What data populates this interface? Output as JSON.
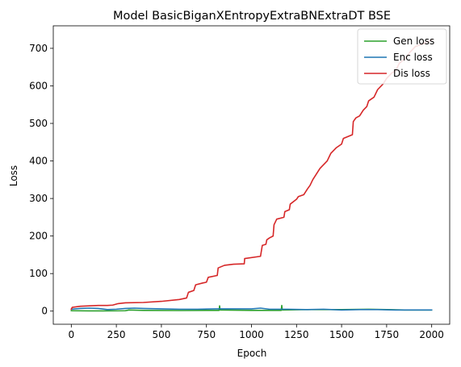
{
  "chart_data": {
    "type": "line",
    "title": "Model BasicBiganXEntropyExtraBNExtraDT BSE",
    "xlabel": "Epoch",
    "ylabel": "Loss",
    "xlim": [
      -100,
      2100
    ],
    "ylim": [
      -35,
      760
    ],
    "xticks": [
      0,
      250,
      500,
      750,
      1000,
      1250,
      1500,
      1750,
      2000
    ],
    "yticks": [
      0,
      100,
      200,
      300,
      400,
      500,
      600,
      700
    ],
    "grid": false,
    "legend_position": "top-right",
    "series": [
      {
        "name": "Gen loss",
        "color": "#2ca02c",
        "points": [
          [
            0,
            1
          ],
          [
            100,
            0.5
          ],
          [
            300,
            1
          ],
          [
            320,
            3
          ],
          [
            400,
            2
          ],
          [
            600,
            1.5
          ],
          [
            820,
            2
          ],
          [
            823,
            14
          ],
          [
            826,
            3
          ],
          [
            1000,
            2
          ],
          [
            1165,
            2
          ],
          [
            1168,
            15
          ],
          [
            1171,
            3
          ],
          [
            1300,
            4
          ],
          [
            1500,
            4
          ],
          [
            1650,
            5
          ],
          [
            1750,
            4
          ],
          [
            1850,
            3
          ],
          [
            2000,
            3
          ]
        ]
      },
      {
        "name": "Enc loss",
        "color": "#1f77b4",
        "points": [
          [
            0,
            5
          ],
          [
            50,
            7
          ],
          [
            100,
            8
          ],
          [
            150,
            7
          ],
          [
            200,
            4
          ],
          [
            250,
            5
          ],
          [
            300,
            7
          ],
          [
            350,
            8
          ],
          [
            400,
            7
          ],
          [
            500,
            6
          ],
          [
            600,
            5
          ],
          [
            700,
            5
          ],
          [
            800,
            6
          ],
          [
            900,
            6
          ],
          [
            1000,
            6
          ],
          [
            1050,
            8
          ],
          [
            1100,
            5
          ],
          [
            1200,
            5
          ],
          [
            1300,
            4
          ],
          [
            1400,
            5
          ],
          [
            1500,
            3
          ],
          [
            1600,
            4
          ],
          [
            1700,
            4
          ],
          [
            1800,
            3
          ],
          [
            1900,
            3
          ],
          [
            2000,
            3
          ]
        ]
      },
      {
        "name": "Dis loss",
        "color": "#d62728",
        "points": [
          [
            0,
            5
          ],
          [
            5,
            10
          ],
          [
            50,
            13
          ],
          [
            100,
            14
          ],
          [
            150,
            15
          ],
          [
            200,
            15
          ],
          [
            230,
            16
          ],
          [
            260,
            20
          ],
          [
            300,
            22
          ],
          [
            400,
            23
          ],
          [
            500,
            26
          ],
          [
            600,
            31
          ],
          [
            640,
            35
          ],
          [
            650,
            50
          ],
          [
            680,
            55
          ],
          [
            690,
            70
          ],
          [
            730,
            75
          ],
          [
            750,
            77
          ],
          [
            760,
            90
          ],
          [
            810,
            95
          ],
          [
            815,
            115
          ],
          [
            850,
            122
          ],
          [
            900,
            125
          ],
          [
            960,
            126
          ],
          [
            962,
            140
          ],
          [
            1050,
            146
          ],
          [
            1060,
            175
          ],
          [
            1080,
            178
          ],
          [
            1085,
            190
          ],
          [
            1100,
            195
          ],
          [
            1120,
            200
          ],
          [
            1125,
            230
          ],
          [
            1140,
            245
          ],
          [
            1180,
            250
          ],
          [
            1185,
            265
          ],
          [
            1210,
            270
          ],
          [
            1215,
            285
          ],
          [
            1250,
            298
          ],
          [
            1260,
            305
          ],
          [
            1290,
            310
          ],
          [
            1310,
            325
          ],
          [
            1325,
            335
          ],
          [
            1340,
            350
          ],
          [
            1360,
            365
          ],
          [
            1380,
            380
          ],
          [
            1400,
            390
          ],
          [
            1420,
            400
          ],
          [
            1440,
            420
          ],
          [
            1470,
            435
          ],
          [
            1500,
            445
          ],
          [
            1510,
            460
          ],
          [
            1560,
            470
          ],
          [
            1565,
            505
          ],
          [
            1580,
            515
          ],
          [
            1600,
            520
          ],
          [
            1620,
            535
          ],
          [
            1640,
            545
          ],
          [
            1650,
            560
          ],
          [
            1680,
            570
          ],
          [
            1700,
            590
          ],
          [
            1730,
            605
          ],
          [
            1750,
            620
          ],
          [
            1780,
            635
          ],
          [
            1800,
            640
          ],
          [
            1820,
            660
          ],
          [
            1850,
            672
          ],
          [
            1880,
            690
          ],
          [
            1910,
            705
          ],
          [
            1950,
            712
          ],
          [
            2000,
            722
          ]
        ]
      }
    ]
  }
}
